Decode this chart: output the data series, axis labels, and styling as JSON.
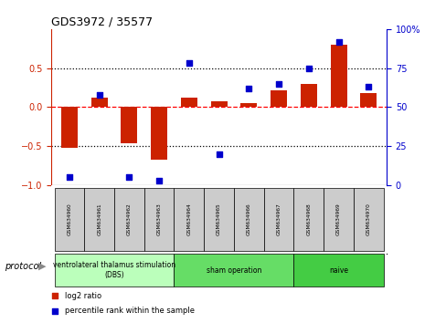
{
  "title": "GDS3972 / 35577",
  "samples": [
    "GSM634960",
    "GSM634961",
    "GSM634962",
    "GSM634963",
    "GSM634964",
    "GSM634965",
    "GSM634966",
    "GSM634967",
    "GSM634968",
    "GSM634969",
    "GSM634970"
  ],
  "log2_ratio": [
    -0.52,
    0.12,
    -0.47,
    -0.68,
    0.12,
    0.07,
    0.05,
    0.22,
    0.3,
    0.8,
    0.18
  ],
  "percentile_rank": [
    5,
    58,
    5,
    3,
    78,
    20,
    62,
    65,
    75,
    92,
    63
  ],
  "bar_color": "#cc2200",
  "dot_color": "#0000cc",
  "ylim_left": [
    -1,
    1
  ],
  "ylim_right": [
    0,
    100
  ],
  "yticks_left": [
    -1,
    -0.5,
    0,
    0.5
  ],
  "yticks_right_vals": [
    0,
    25,
    50,
    75,
    100
  ],
  "yticks_right_labels": [
    "0",
    "25",
    "50",
    "75",
    "100%"
  ],
  "protocol_groups": [
    {
      "label": "ventrolateral thalamus stimulation\n(DBS)",
      "start": 0,
      "end": 3,
      "color": "#bbffbb"
    },
    {
      "label": "sham operation",
      "start": 4,
      "end": 7,
      "color": "#66dd66"
    },
    {
      "label": "naive",
      "start": 8,
      "end": 10,
      "color": "#44cc44"
    }
  ],
  "legend_bar_label": "log2 ratio",
  "legend_dot_label": "percentile rank within the sample",
  "left_tick_color": "#cc2200",
  "right_tick_color": "#0000cc",
  "sample_box_color": "#cccccc",
  "background_color": "#ffffff"
}
